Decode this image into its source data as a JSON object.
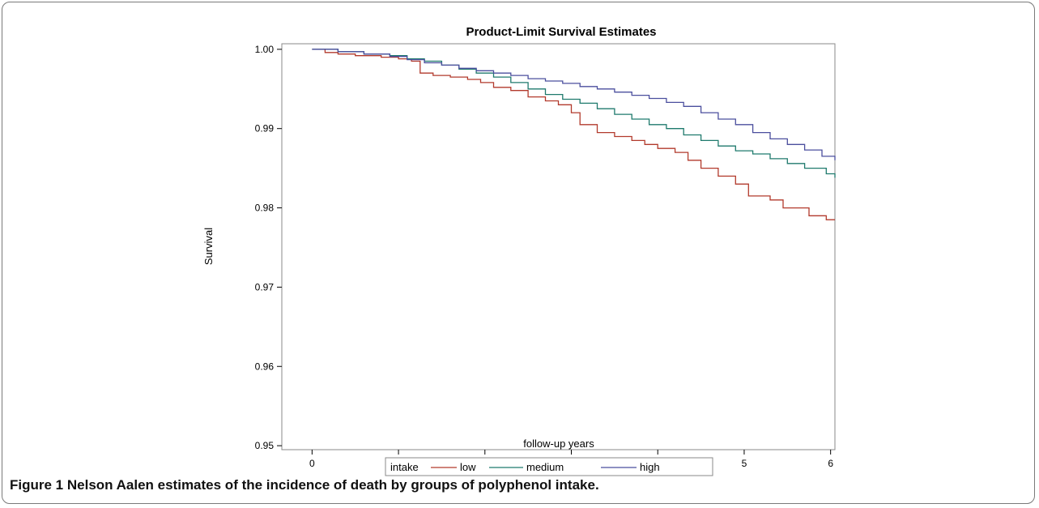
{
  "caption": {
    "label": "Figure 1",
    "text": "Nelson Aalen estimates of the incidence of death by groups of polyphenol intake."
  },
  "legend": {
    "title": "intake"
  },
  "chart_data": {
    "type": "line",
    "title": "Product-Limit Survival Estimates",
    "xlabel": "follow-up years",
    "ylabel": "Survival",
    "xlim": [
      -0.35,
      6.05
    ],
    "ylim": [
      0.9495,
      1.0007
    ],
    "xticks": [
      0,
      1,
      2,
      3,
      4,
      5,
      6
    ],
    "yticks": [
      0.95,
      0.96,
      0.97,
      0.98,
      0.99,
      1.0
    ],
    "ytick_labels": [
      "0.95",
      "0.96",
      "0.97",
      "0.98",
      "0.99",
      "1.00"
    ],
    "grid": false,
    "legend_position": "bottom",
    "step": true,
    "series": [
      {
        "name": "low",
        "color": "#b23a2c",
        "points": [
          [
            0,
            1.0
          ],
          [
            0.15,
            0.9996
          ],
          [
            0.3,
            0.9994
          ],
          [
            0.5,
            0.9992
          ],
          [
            0.8,
            0.999
          ],
          [
            1.0,
            0.9988
          ],
          [
            1.15,
            0.9985
          ],
          [
            1.25,
            0.997
          ],
          [
            1.4,
            0.9967
          ],
          [
            1.6,
            0.9965
          ],
          [
            1.8,
            0.9962
          ],
          [
            1.95,
            0.9958
          ],
          [
            2.1,
            0.9952
          ],
          [
            2.3,
            0.9948
          ],
          [
            2.5,
            0.994
          ],
          [
            2.7,
            0.9935
          ],
          [
            2.85,
            0.993
          ],
          [
            3.0,
            0.992
          ],
          [
            3.1,
            0.9905
          ],
          [
            3.3,
            0.9895
          ],
          [
            3.5,
            0.989
          ],
          [
            3.7,
            0.9885
          ],
          [
            3.85,
            0.988
          ],
          [
            4.0,
            0.9875
          ],
          [
            4.2,
            0.987
          ],
          [
            4.35,
            0.986
          ],
          [
            4.5,
            0.985
          ],
          [
            4.7,
            0.984
          ],
          [
            4.9,
            0.983
          ],
          [
            5.05,
            0.9815
          ],
          [
            5.3,
            0.981
          ],
          [
            5.45,
            0.98
          ],
          [
            5.75,
            0.979
          ],
          [
            5.95,
            0.9785
          ],
          [
            6.05,
            0.9785
          ]
        ]
      },
      {
        "name": "medium",
        "color": "#1f7a6d",
        "points": [
          [
            0,
            1.0
          ],
          [
            0.3,
            0.9997
          ],
          [
            0.6,
            0.9994
          ],
          [
            0.9,
            0.9992
          ],
          [
            1.1,
            0.9988
          ],
          [
            1.3,
            0.9985
          ],
          [
            1.5,
            0.998
          ],
          [
            1.7,
            0.9975
          ],
          [
            1.9,
            0.997
          ],
          [
            2.1,
            0.9965
          ],
          [
            2.3,
            0.9958
          ],
          [
            2.5,
            0.995
          ],
          [
            2.7,
            0.9943
          ],
          [
            2.9,
            0.9937
          ],
          [
            3.1,
            0.9932
          ],
          [
            3.3,
            0.9925
          ],
          [
            3.5,
            0.9918
          ],
          [
            3.7,
            0.9912
          ],
          [
            3.9,
            0.9905
          ],
          [
            4.1,
            0.99
          ],
          [
            4.3,
            0.9892
          ],
          [
            4.5,
            0.9885
          ],
          [
            4.7,
            0.9878
          ],
          [
            4.9,
            0.9872
          ],
          [
            5.1,
            0.9868
          ],
          [
            5.3,
            0.9862
          ],
          [
            5.5,
            0.9856
          ],
          [
            5.7,
            0.985
          ],
          [
            5.95,
            0.9843
          ],
          [
            6.05,
            0.9838
          ]
        ]
      },
      {
        "name": "high",
        "color": "#4b4f9e",
        "points": [
          [
            0,
            1.0
          ],
          [
            0.3,
            0.9997
          ],
          [
            0.6,
            0.9994
          ],
          [
            0.9,
            0.9991
          ],
          [
            1.1,
            0.9987
          ],
          [
            1.3,
            0.9983
          ],
          [
            1.5,
            0.998
          ],
          [
            1.7,
            0.9976
          ],
          [
            1.9,
            0.9973
          ],
          [
            2.1,
            0.997
          ],
          [
            2.3,
            0.9967
          ],
          [
            2.5,
            0.9963
          ],
          [
            2.7,
            0.996
          ],
          [
            2.9,
            0.9957
          ],
          [
            3.1,
            0.9953
          ],
          [
            3.3,
            0.995
          ],
          [
            3.5,
            0.9946
          ],
          [
            3.7,
            0.9942
          ],
          [
            3.9,
            0.9938
          ],
          [
            4.1,
            0.9933
          ],
          [
            4.3,
            0.9928
          ],
          [
            4.5,
            0.992
          ],
          [
            4.7,
            0.9912
          ],
          [
            4.9,
            0.9905
          ],
          [
            5.1,
            0.9895
          ],
          [
            5.3,
            0.9887
          ],
          [
            5.5,
            0.988
          ],
          [
            5.7,
            0.9873
          ],
          [
            5.9,
            0.9865
          ],
          [
            6.05,
            0.986
          ]
        ]
      }
    ]
  }
}
